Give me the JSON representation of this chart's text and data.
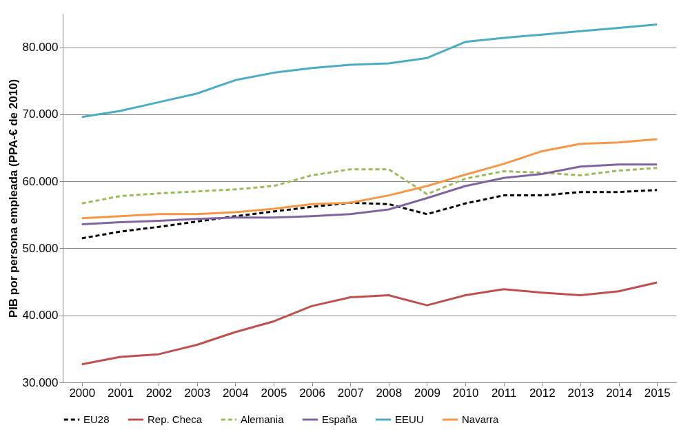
{
  "chart_data": {
    "type": "line",
    "ylabel": "PIB por persona empleada (PPA-€ de 2010)",
    "categories": [
      "2000",
      "2001",
      "2002",
      "2003",
      "2004",
      "2005",
      "2006",
      "2007",
      "2008",
      "2009",
      "2010",
      "2011",
      "2012",
      "2013",
      "2014",
      "2015"
    ],
    "ylim": [
      30000,
      85000
    ],
    "yticks": [
      {
        "value": 30000,
        "label": "30.000"
      },
      {
        "value": 40000,
        "label": "40.000"
      },
      {
        "value": 50000,
        "label": "50.000"
      },
      {
        "value": 60000,
        "label": "60.000"
      },
      {
        "value": 70000,
        "label": "70.000"
      },
      {
        "value": 80000,
        "label": "80.000"
      }
    ],
    "grid": "y",
    "legend": "bottom",
    "marker": "none",
    "series": [
      {
        "name": "EU28",
        "color": "#000000",
        "line_style": "dashed",
        "values": [
          51500,
          52500,
          53200,
          54000,
          54800,
          55500,
          56200,
          56800,
          56600,
          55100,
          56700,
          57900,
          57900,
          58400,
          58400,
          58700
        ]
      },
      {
        "name": "Rep. Checa",
        "color": "#c0504d",
        "line_style": "solid",
        "values": [
          32700,
          33800,
          34200,
          35600,
          37500,
          39100,
          41400,
          42700,
          43000,
          41500,
          43000,
          43900,
          43400,
          43000,
          43600,
          44900
        ]
      },
      {
        "name": "Alemania",
        "color": "#9bbb59",
        "line_style": "dashed",
        "values": [
          56700,
          57800,
          58200,
          58500,
          58800,
          59300,
          60900,
          61800,
          61800,
          58100,
          60400,
          61500,
          61300,
          60900,
          61600,
          62000
        ]
      },
      {
        "name": "España",
        "color": "#8064a2",
        "line_style": "solid",
        "values": [
          53600,
          53900,
          54100,
          54400,
          54600,
          54600,
          54800,
          55100,
          55800,
          57500,
          59300,
          60500,
          61100,
          62200,
          62500,
          62500
        ]
      },
      {
        "name": "EEUU",
        "color": "#4bacc6",
        "line_style": "solid",
        "values": [
          69600,
          70500,
          71800,
          73100,
          75100,
          76200,
          76900,
          77400,
          77600,
          78400,
          80800,
          81400,
          81900,
          82400,
          82900,
          83400
        ]
      },
      {
        "name": "Navarra",
        "color": "#f79646",
        "line_style": "solid",
        "values": [
          54500,
          54800,
          55100,
          55100,
          55400,
          55900,
          56600,
          56800,
          57900,
          59300,
          61000,
          62600,
          64500,
          65600,
          65800,
          66300
        ]
      }
    ]
  }
}
